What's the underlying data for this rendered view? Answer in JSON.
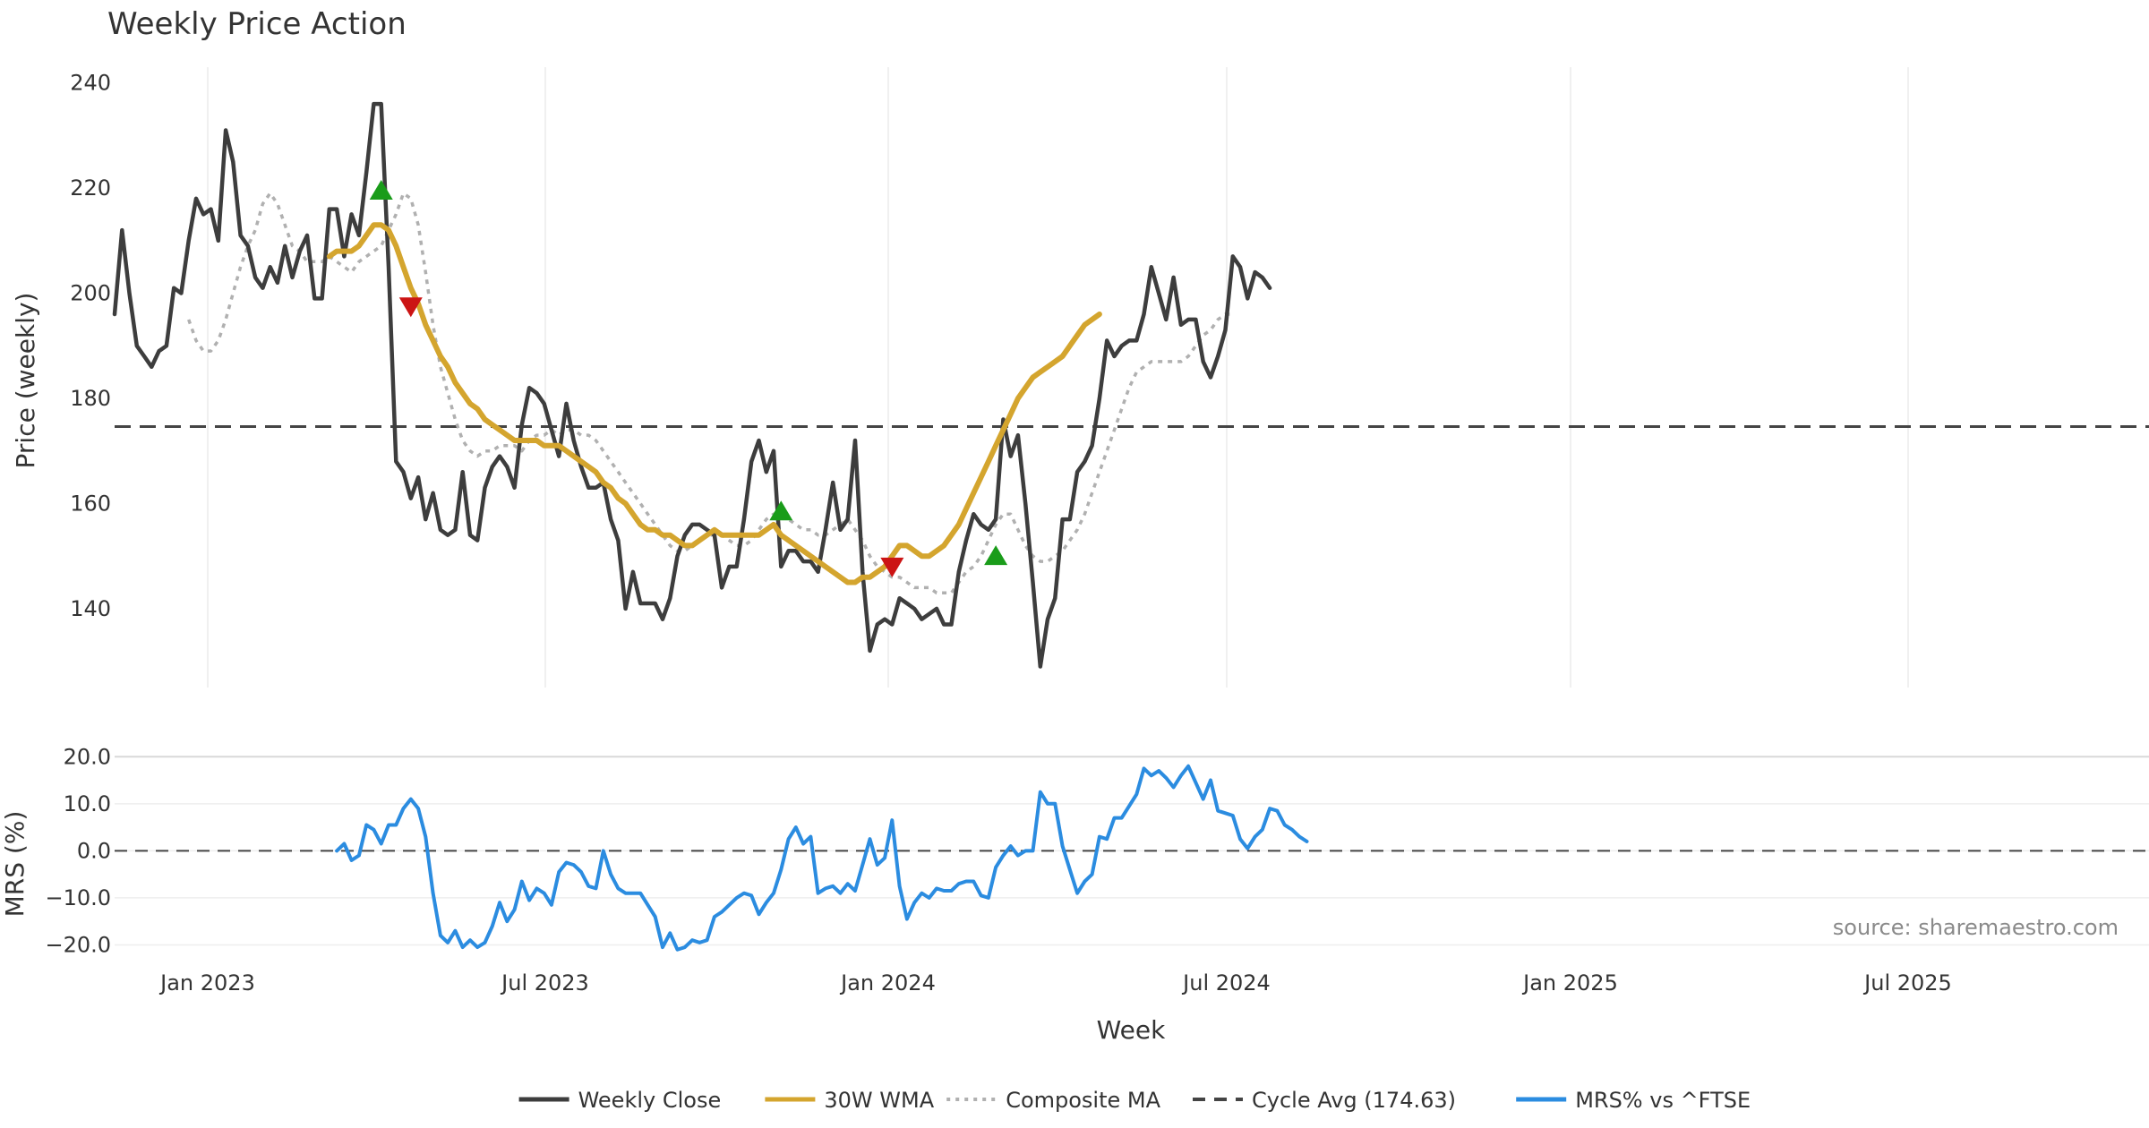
{
  "chart_data": {
    "type": "line",
    "title": "Weekly Price Action",
    "xlabel": "Week",
    "x_tick_labels": [
      "Jan 2023",
      "Jul 2023",
      "Jan 2024",
      "Jul 2024",
      "Jan 2025",
      "Jul 2025"
    ],
    "x_range": [
      "2022-10-24",
      "2025-11-03"
    ],
    "price_panel": {
      "ylabel": "Price (weekly)",
      "ylim": [
        125,
        243
      ],
      "yticks": [
        140,
        160,
        180,
        200,
        220,
        240
      ],
      "series": [
        {
          "name": "Weekly Close",
          "color": "#3d3d3d",
          "style": "solid",
          "values": [
            196,
            212,
            200,
            190,
            188,
            186,
            189,
            190,
            201,
            200,
            210,
            218,
            215,
            216,
            210,
            231,
            225,
            211,
            209,
            203,
            201,
            205,
            202,
            209,
            203,
            208,
            211,
            199,
            199,
            216,
            216,
            207,
            215,
            211,
            223,
            236,
            236,
            205,
            168,
            166,
            161,
            165,
            157,
            162,
            155,
            154,
            155,
            166,
            154,
            153,
            163,
            167,
            169,
            167,
            163,
            175,
            182,
            181,
            179,
            174,
            169,
            179,
            172,
            167,
            163,
            163,
            164,
            157,
            153,
            140,
            147,
            141,
            141,
            141,
            138,
            142,
            150,
            154,
            156,
            156,
            155,
            154,
            144,
            148,
            148,
            157,
            168,
            172,
            166,
            170,
            148,
            151,
            151,
            149,
            149,
            147,
            155,
            164,
            155,
            157,
            172,
            147,
            132,
            137,
            138,
            137,
            142,
            141,
            140,
            138,
            139,
            140,
            137,
            137,
            147,
            153,
            158,
            156,
            155,
            157,
            176,
            169,
            173,
            160,
            145,
            129,
            138,
            142,
            157,
            157,
            166,
            168,
            171,
            180,
            191,
            188,
            190,
            191,
            191,
            196,
            205,
            200,
            195,
            203,
            194,
            195,
            195,
            187,
            184,
            188,
            193,
            207,
            205,
            199,
            204,
            203,
            201
          ],
          "start_index": 0
        },
        {
          "name": "30W WMA",
          "color": "#d4a52e",
          "style": "solid",
          "values": [
            207,
            208,
            208,
            208,
            209,
            211,
            213,
            213,
            212,
            209,
            205,
            201,
            198,
            194,
            191,
            188,
            186,
            183,
            181,
            179,
            178,
            176,
            175,
            174,
            173,
            172,
            172,
            172,
            172,
            171,
            171,
            171,
            170,
            169,
            168,
            167,
            166,
            164,
            163,
            161,
            160,
            158,
            156,
            155,
            155,
            154,
            154,
            153,
            152,
            152,
            153,
            154,
            155,
            154,
            154,
            154,
            154,
            154,
            154,
            155,
            156,
            154,
            153,
            152,
            151,
            150,
            149,
            148,
            147,
            146,
            145,
            145,
            146,
            146,
            147,
            148,
            150,
            152,
            152,
            151,
            150,
            150,
            151,
            152,
            154,
            156,
            159,
            162,
            165,
            168,
            171,
            174,
            177,
            180,
            182,
            184,
            185,
            186,
            187,
            188,
            190,
            192,
            194,
            195,
            196
          ],
          "start_index": 29
        },
        {
          "name": "Composite MA",
          "color": "#b0b0b0",
          "style": "dotted",
          "values": [
            195,
            191,
            189,
            189,
            191,
            195,
            200,
            205,
            209,
            212,
            217,
            219,
            217,
            213,
            209,
            208,
            206,
            206,
            206,
            207,
            206,
            205,
            204,
            206,
            207,
            208,
            209,
            212,
            215,
            219,
            218,
            213,
            204,
            194,
            186,
            181,
            176,
            172,
            170,
            169,
            170,
            170,
            171,
            171,
            171,
            170,
            172,
            173,
            173,
            174,
            173,
            174,
            174,
            173,
            173,
            172,
            170,
            168,
            166,
            164,
            162,
            160,
            158,
            156,
            154,
            152,
            151,
            151,
            152,
            153,
            154,
            154,
            154,
            153,
            152,
            152,
            153,
            155,
            157,
            158,
            158,
            157,
            156,
            155,
            155,
            154,
            154,
            155,
            156,
            157,
            155,
            153,
            150,
            148,
            147,
            146,
            146,
            145,
            144,
            144,
            144,
            143,
            143,
            143,
            145,
            147,
            148,
            150,
            153,
            156,
            158,
            158,
            155,
            152,
            150,
            149,
            149,
            150,
            151,
            153,
            155,
            158,
            162,
            166,
            170,
            174,
            178,
            182,
            185,
            186,
            187,
            187,
            187,
            187,
            187,
            188,
            190,
            192,
            193,
            195,
            196,
            196
          ],
          "start_index": 10
        }
      ],
      "cycle_avg": {
        "name": "Cycle Avg (174.63)",
        "value": 174.63,
        "color": "#444444"
      },
      "buy_signals": [
        {
          "week_index": 36,
          "value": 219.5
        },
        {
          "week_index": 90,
          "value": 158.5
        },
        {
          "week_index": 119,
          "value": 150
        }
      ],
      "sell_signals": [
        {
          "week_index": 40,
          "value": 197.5
        },
        {
          "week_index": 105,
          "value": 148
        }
      ]
    },
    "mrs_panel": {
      "ylabel": "MRS (%)",
      "ylim": [
        -22,
        21
      ],
      "yticks": [
        20,
        10,
        0,
        -10,
        -20
      ],
      "ytick_labels": [
        "20.0",
        "10.0",
        "0.0",
        "−10.0",
        "−20.0"
      ],
      "series": [
        {
          "name": "MRS% vs ^FTSE",
          "color": "#2b8ce0",
          "style": "solid",
          "start_index": 30,
          "values": [
            0,
            1.5,
            -2,
            -1,
            5.5,
            4.5,
            1.5,
            5.5,
            5.5,
            9,
            11,
            9,
            3,
            -9,
            -18,
            -19.5,
            -17,
            -20.5,
            -19,
            -20.5,
            -19.5,
            -16,
            -11,
            -15,
            -12.5,
            -6.5,
            -10.5,
            -8,
            -9,
            -11.5,
            -4.5,
            -2.5,
            -3,
            -4.5,
            -7.5,
            -8,
            0,
            -5,
            -8,
            -9,
            -9,
            -9,
            -11.5,
            -14,
            -20.5,
            -17.5,
            -21,
            -20.5,
            -19,
            -19.5,
            -19,
            -14,
            -13,
            -11.5,
            -10,
            -9,
            -9.5,
            -13.5,
            -11,
            -9,
            -4,
            2.5,
            5,
            1.5,
            3,
            -9,
            -8,
            -7.5,
            -9,
            -7,
            -8.5,
            -3,
            2.5,
            -3,
            -1.5,
            6.5,
            -7.5,
            -14.5,
            -11,
            -9,
            -10,
            -8,
            -8.5,
            -8.5,
            -7,
            -6.5,
            -6.5,
            -9.5,
            -10,
            -3.5,
            -1,
            1,
            -1,
            0,
            0,
            12.5,
            10,
            10,
            1,
            -4,
            -9,
            -6.5,
            -5,
            3,
            2.5,
            7,
            7,
            9.5,
            12,
            17.5,
            16,
            17,
            15.5,
            13.5,
            16,
            18,
            14.5,
            11,
            15,
            8.5,
            8,
            7.5,
            2.5,
            0.5,
            3,
            4.5,
            9,
            8.5,
            5.5,
            4.5,
            3,
            2
          ]
        }
      ],
      "zero_line": 0,
      "source_note": "source: sharemaestro.com"
    },
    "legend": {
      "placement": "bottom-center",
      "entries": [
        {
          "label": "Weekly Close",
          "color": "#3d3d3d",
          "style": "solid"
        },
        {
          "label": "30W WMA",
          "color": "#d4a52e",
          "style": "solid"
        },
        {
          "label": "Composite MA",
          "color": "#b0b0b0",
          "style": "dotted"
        },
        {
          "label": "Cycle Avg (174.63)",
          "color": "#444444",
          "style": "dashed"
        },
        {
          "label": "MRS% vs ^FTSE",
          "color": "#2b8ce0",
          "style": "solid"
        }
      ]
    }
  }
}
